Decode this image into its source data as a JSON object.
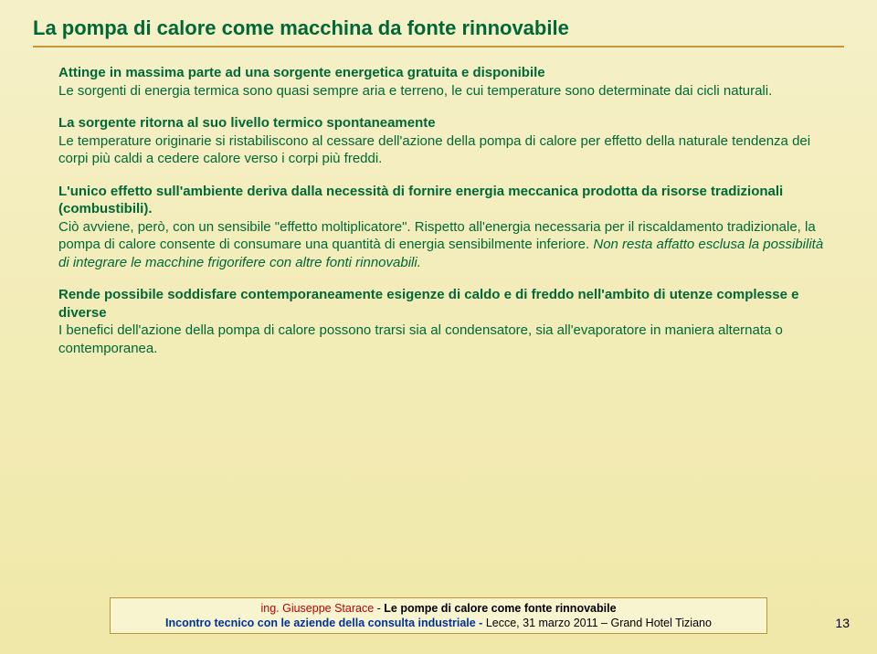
{
  "title": "La pompa di calore come macchina da fonte rinnovabile",
  "p1": {
    "heading": "Attinge in massima parte ad una sorgente energetica gratuita e disponibile",
    "body": "Le sorgenti di energia termica sono quasi sempre aria e terreno, le cui temperature sono determinate dai cicli naturali."
  },
  "p2": {
    "heading": "La sorgente ritorna al suo livello termico spontaneamente",
    "body": "Le temperature originarie si ristabiliscono al cessare dell'azione della pompa di calore per effetto della naturale tendenza dei corpi più caldi a cedere calore verso i corpi più freddi."
  },
  "p3": {
    "heading": "L'unico effetto sull'ambiente deriva dalla necessità di fornire energia meccanica prodotta da risorse tradizionali (combustibili).",
    "body1": "Ciò avviene, però, con un sensibile \"effetto moltiplicatore\". Rispetto all'energia necessaria per il riscaldamento tradizionale, la pompa di calore consente di consumare una quantità di energia sensibilmente inferiore. ",
    "body2": "Non resta affatto esclusa la possibilità di integrare le macchine frigorifere con altre fonti rinnovabili."
  },
  "p4": {
    "heading": "Rende possibile soddisfare contemporaneamente esigenze di caldo e di freddo nell'ambito di utenze complesse e diverse",
    "body": "I benefici dell'azione della pompa di calore possono trarsi sia al condensatore, sia all'evaporatore in maniera alternata o contemporanea."
  },
  "footer": {
    "author_prefix": "ing. ",
    "author": "Giuseppe Starace ",
    "talk_sep": "- ",
    "talk_title": "Le pompe di calore come fonte rinnovabile",
    "event": "Incontro tecnico con le aziende della consulta industriale - ",
    "location": "Lecce, 31 marzo 2011 – Grand Hotel Tiziano"
  },
  "page_number": "13",
  "colors": {
    "bg_top": "#f5f0c8",
    "bg_bottom": "#f0e8a8",
    "heading_green": "#006837",
    "underline": "#c89838",
    "footer_border": "#b89838",
    "footer_bg": "#f8f4d0",
    "red": "#c00000",
    "blue": "#003399"
  }
}
